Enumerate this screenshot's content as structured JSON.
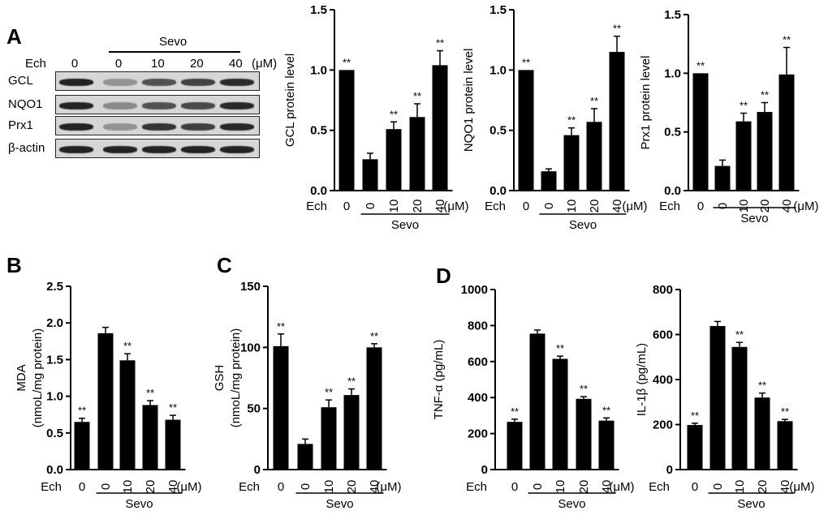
{
  "panel_letters": [
    "A",
    "B",
    "C",
    "D"
  ],
  "blot": {
    "treatment_label": "Ech",
    "sevo_label": "Sevo",
    "unit": "(μM)",
    "lane_labels": [
      "0",
      "0",
      "10",
      "20",
      "40"
    ],
    "rows": [
      "GCL",
      "NQO1",
      "Prx1",
      "β-actin"
    ],
    "band_intensity": [
      [
        0.95,
        0.35,
        0.7,
        0.78,
        0.9
      ],
      [
        0.95,
        0.4,
        0.7,
        0.75,
        0.92
      ],
      [
        0.95,
        0.35,
        0.85,
        0.8,
        0.92
      ],
      [
        0.95,
        0.95,
        0.95,
        0.95,
        0.95
      ]
    ]
  },
  "chart_data": [
    {
      "type": "bar",
      "panel": "A",
      "ylabel": "GCL protein level",
      "xlabel": "Ech",
      "group_label": "Sevo",
      "unit": "(μM)",
      "categories": [
        "0",
        "0",
        "10",
        "20",
        "40"
      ],
      "values": [
        1.0,
        0.26,
        0.51,
        0.61,
        1.04
      ],
      "errors": [
        0,
        0.05,
        0.06,
        0.11,
        0.12
      ],
      "significance": [
        "**",
        "",
        "**",
        "**",
        "**"
      ],
      "ylim": [
        0,
        1.5
      ],
      "yticks": [
        "0.0",
        "0.5",
        "1.0",
        "1.5"
      ]
    },
    {
      "type": "bar",
      "panel": "A",
      "ylabel": "NQO1 protein level",
      "xlabel": "Ech",
      "group_label": "Sevo",
      "unit": "(μM)",
      "categories": [
        "0",
        "0",
        "10",
        "20",
        "40"
      ],
      "values": [
        1.0,
        0.16,
        0.46,
        0.57,
        1.15
      ],
      "errors": [
        0,
        0.02,
        0.06,
        0.11,
        0.13
      ],
      "significance": [
        "**",
        "",
        "**",
        "**",
        "**"
      ],
      "ylim": [
        0,
        1.5
      ],
      "yticks": [
        "0.0",
        "0.5",
        "1.0",
        "1.5"
      ]
    },
    {
      "type": "bar",
      "panel": "A",
      "ylabel": "Prx1 protein level",
      "xlabel": "Ech",
      "group_label": "Sevo",
      "unit": "(μM)",
      "categories": [
        "0",
        "0",
        "10",
        "20",
        "40"
      ],
      "values": [
        1.0,
        0.21,
        0.59,
        0.67,
        0.99
      ],
      "errors": [
        0,
        0.05,
        0.07,
        0.08,
        0.23
      ],
      "significance": [
        "**",
        "",
        "**",
        "**",
        "**"
      ],
      "ylim": [
        0,
        1.5
      ],
      "yticks": [
        "0.0",
        "0.5",
        "1.0",
        "1.5"
      ]
    },
    {
      "type": "bar",
      "panel": "B",
      "ylabel": "MDA (nmoL/mg protein)",
      "xlabel": "Ech",
      "group_label": "Sevo",
      "unit": "(μM)",
      "categories": [
        "0",
        "0",
        "10",
        "20",
        "40"
      ],
      "values": [
        0.65,
        1.86,
        1.49,
        0.88,
        0.68
      ],
      "errors": [
        0.05,
        0.08,
        0.09,
        0.06,
        0.06
      ],
      "significance": [
        "**",
        "",
        "**",
        "**",
        "**"
      ],
      "ylim": [
        0,
        2.5
      ],
      "yticks": [
        "0.0",
        "0.5",
        "1.0",
        "1.5",
        "2.0",
        "2.5"
      ]
    },
    {
      "type": "bar",
      "panel": "C",
      "ylabel": "GSH (nmoL/mg protein)",
      "xlabel": "Ech",
      "group_label": "Sevo",
      "unit": "(μM)",
      "categories": [
        "0",
        "0",
        "10",
        "20",
        "40"
      ],
      "values": [
        101,
        21,
        51,
        61,
        100
      ],
      "errors": [
        10,
        4,
        6,
        5,
        3
      ],
      "significance": [
        "**",
        "",
        "**",
        "**",
        "**"
      ],
      "ylim": [
        0,
        150
      ],
      "yticks": [
        "0",
        "50",
        "100",
        "150"
      ]
    },
    {
      "type": "bar",
      "panel": "D",
      "ylabel": "TNF-α (pg/mL)",
      "xlabel": "Ech",
      "group_label": "Sevo",
      "unit": "(μM)",
      "categories": [
        "0",
        "0",
        "10",
        "20",
        "40"
      ],
      "values": [
        265,
        755,
        615,
        393,
        272
      ],
      "errors": [
        15,
        20,
        15,
        12,
        15
      ],
      "significance": [
        "**",
        "",
        "**",
        "**",
        "**"
      ],
      "ylim": [
        0,
        1000
      ],
      "yticks": [
        "0",
        "200",
        "400",
        "600",
        "800",
        "1000"
      ]
    },
    {
      "type": "bar",
      "panel": "D",
      "ylabel": "IL-1β (pg/mL)",
      "xlabel": "Ech",
      "group_label": "Sevo",
      "unit": "(μM)",
      "categories": [
        "0",
        "0",
        "10",
        "20",
        "40"
      ],
      "values": [
        198,
        638,
        545,
        320,
        215
      ],
      "errors": [
        8,
        20,
        20,
        20,
        8
      ],
      "significance": [
        "**",
        "",
        "**",
        "**",
        "**"
      ],
      "ylim": [
        0,
        800
      ],
      "yticks": [
        "0",
        "200",
        "400",
        "600",
        "800"
      ]
    }
  ]
}
